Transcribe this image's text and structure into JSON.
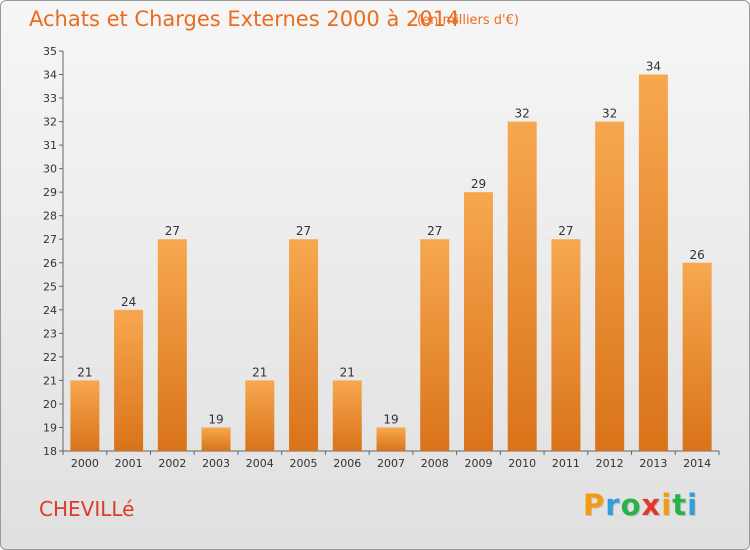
{
  "header": {
    "title": "Achats et Charges Externes 2000 à 2014",
    "unit": "(en milliers d'€)"
  },
  "footer": {
    "place": "CHEVILLé",
    "brand_letters": [
      "P",
      "r",
      "o",
      "x",
      "i",
      "t",
      "i"
    ],
    "brand_colors": [
      "#f39c12",
      "#2e9fdc",
      "#27b24a",
      "#e0392a",
      "#f39c12",
      "#27b24a",
      "#2e9fdc"
    ]
  },
  "colors": {
    "bar_light": "#f7a84f",
    "bar_dark": "#d9731a",
    "title": "#ea6c1f"
  },
  "chart_data": {
    "type": "bar",
    "title": "Achats et Charges Externes 2000 à 2014",
    "subtitle": "(en milliers d'€)",
    "xlabel": "",
    "ylabel": "",
    "categories": [
      "2000",
      "2001",
      "2002",
      "2003",
      "2004",
      "2005",
      "2006",
      "2007",
      "2008",
      "2009",
      "2010",
      "2011",
      "2012",
      "2013",
      "2014"
    ],
    "values": [
      21,
      24,
      27,
      19,
      21,
      27,
      21,
      19,
      27,
      29,
      32,
      27,
      32,
      34,
      26
    ],
    "ylim": [
      18,
      35
    ],
    "yticks": [
      18,
      19,
      20,
      21,
      22,
      23,
      24,
      25,
      26,
      27,
      28,
      29,
      30,
      31,
      32,
      33,
      34,
      35
    ],
    "grid": false,
    "legend": "none"
  }
}
